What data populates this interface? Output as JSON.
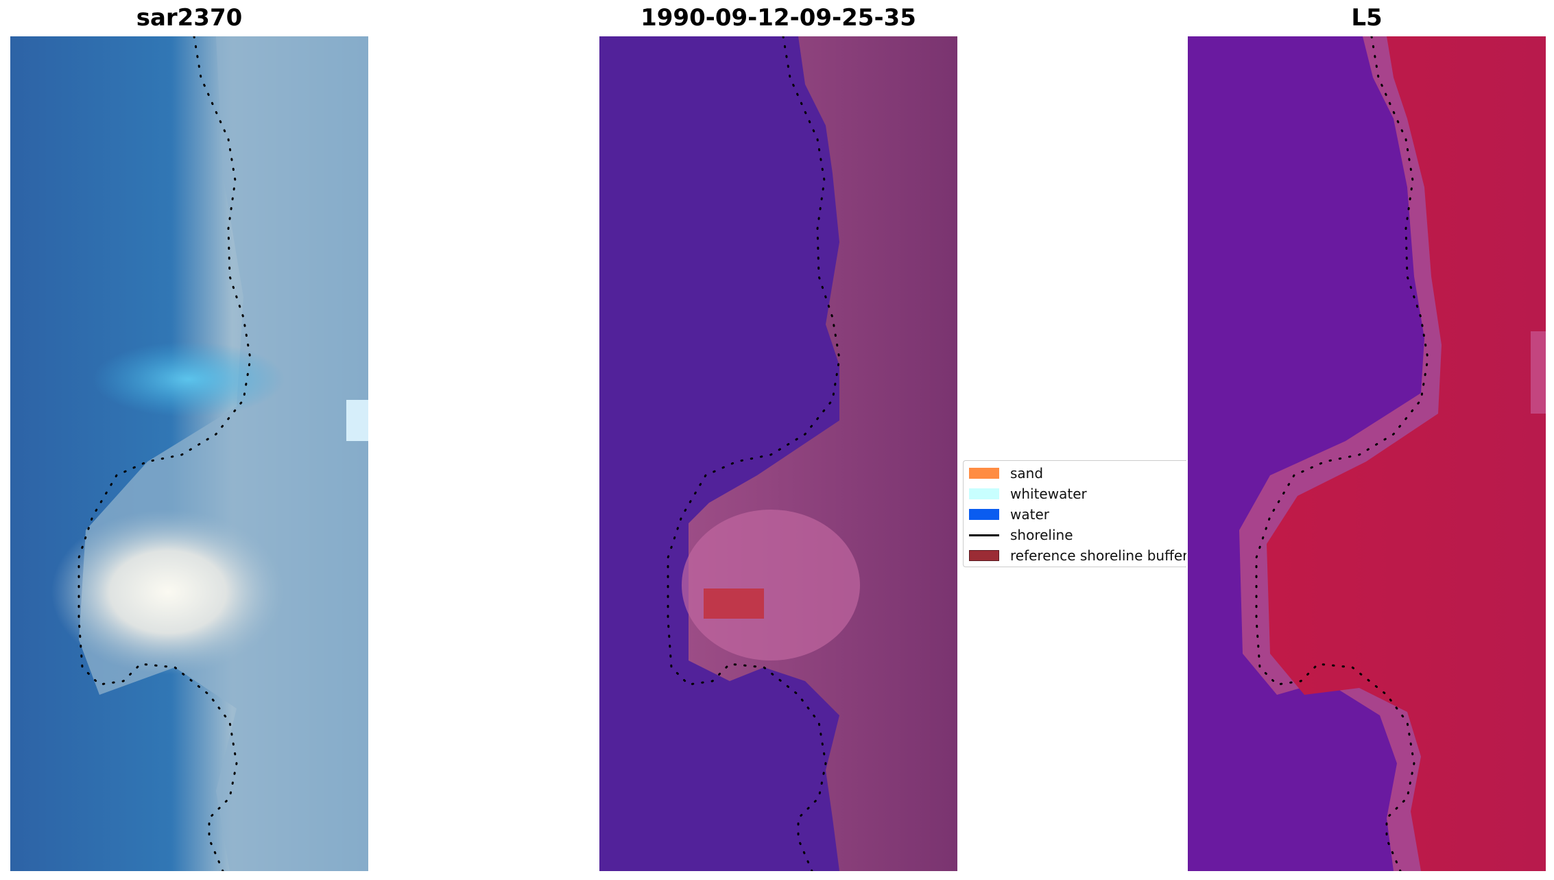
{
  "panels": {
    "left": {
      "title": "sar2370"
    },
    "middle": {
      "title": "1990-09-12-09-25-35"
    },
    "right": {
      "title": "L5"
    }
  },
  "legend": {
    "items": [
      {
        "label": "sand",
        "kind": "patch",
        "color": "#ff8c42"
      },
      {
        "label": "whitewater",
        "kind": "patch",
        "color": "#c8ffff"
      },
      {
        "label": "water",
        "kind": "patch",
        "color": "#0a5cf0"
      },
      {
        "label": "shoreline",
        "kind": "line",
        "color": "#000000"
      },
      {
        "label": "reference shoreline buffer",
        "kind": "patch",
        "color": "#9b2c35"
      }
    ]
  },
  "colors": {
    "rgb_water": "#2f6fae",
    "rgb_surf": "#e8e8e4",
    "class_water": "#52229a",
    "class_land": "#8a3d78",
    "ndwi_water": "#6a1aa0",
    "ndwi_land": "#c01a48",
    "buffer_patch": "#c0374a",
    "shoreline": "#000000"
  }
}
